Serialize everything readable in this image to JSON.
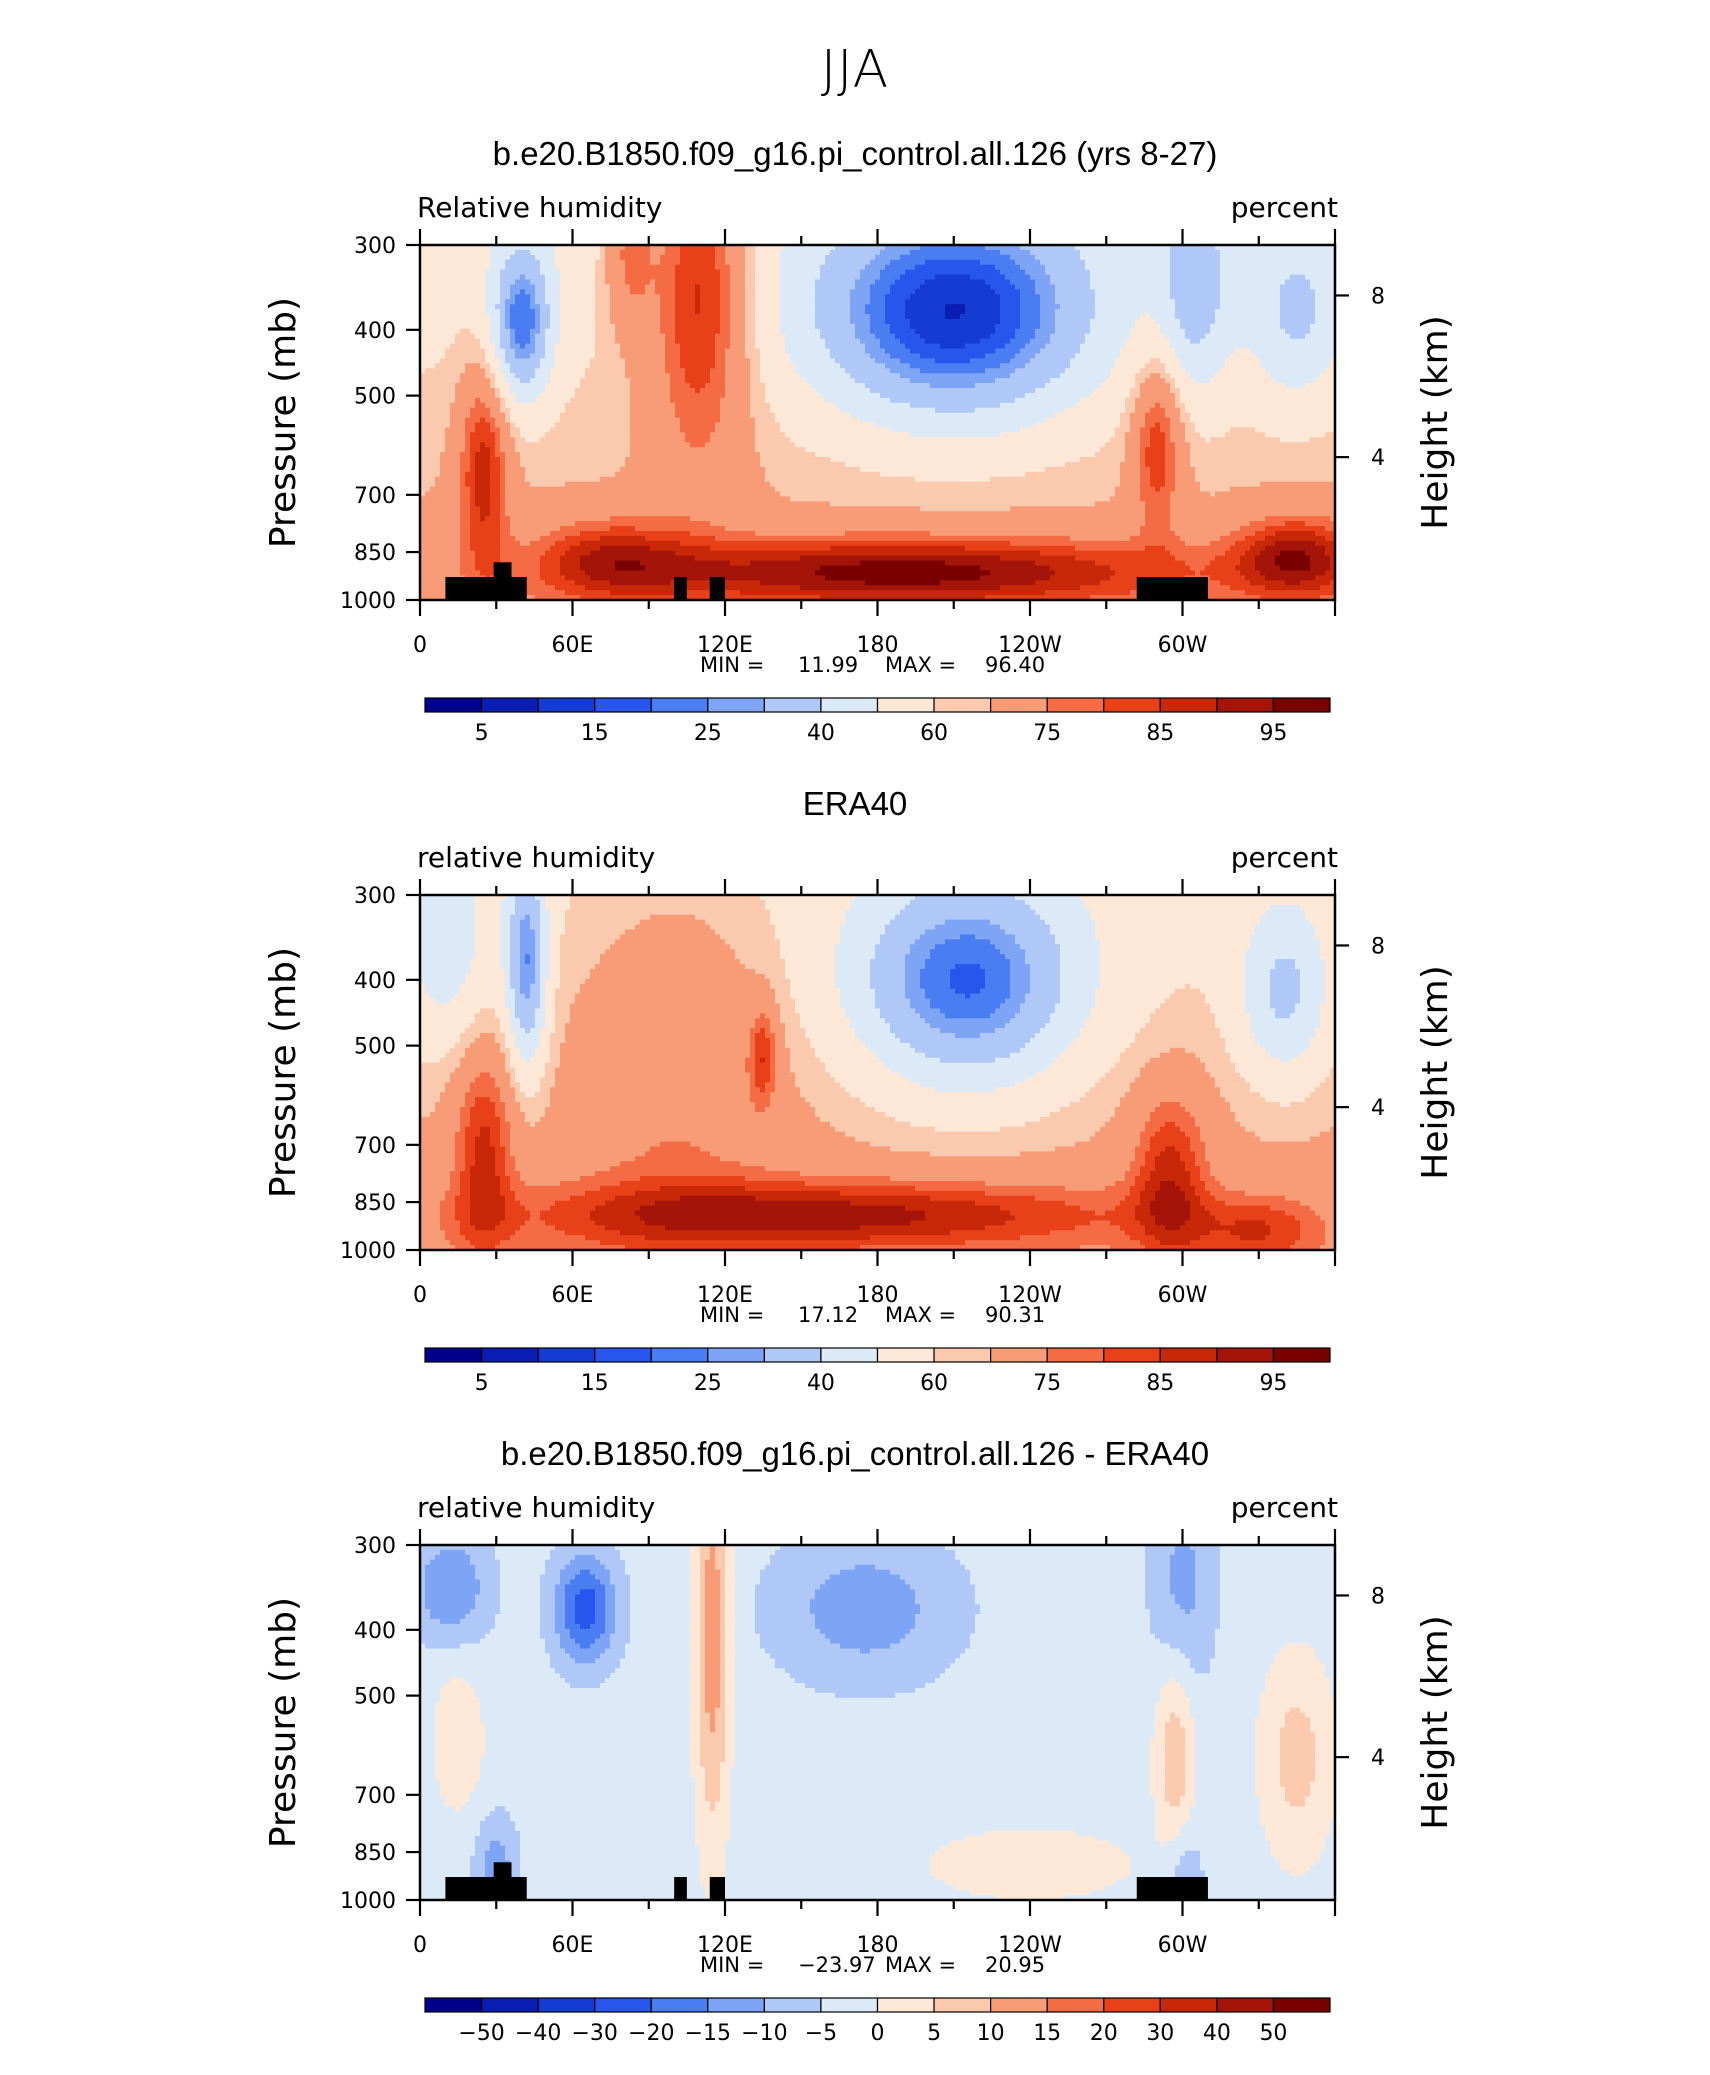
{
  "figure": {
    "title": "JJA"
  },
  "colors": {
    "abs_scale": [
      "#00008c",
      "#0a1eb4",
      "#143cd2",
      "#2856ec",
      "#4a7df2",
      "#7ea4f5",
      "#b0c8f7",
      "#dceaf8",
      "#fde8d8",
      "#fbc9ad",
      "#f89c78",
      "#f46b44",
      "#e84018",
      "#c92808",
      "#a41408",
      "#7a0000"
    ],
    "diff_scale": [
      "#00008c",
      "#0a1eb4",
      "#143cd2",
      "#2856ec",
      "#4a7df2",
      "#7ea4f5",
      "#b0c8f7",
      "#dceaf8",
      "#fde8d8",
      "#fbc9ad",
      "#f89c78",
      "#f46b44",
      "#e84018",
      "#c92808",
      "#a41408",
      "#7a0000"
    ],
    "land": "#000000"
  },
  "chart_data": [
    {
      "type": "heatmap",
      "title": "b.e20.B1850.f09_g16.pi_control.all.126 (yrs 8-27)",
      "left_label": "Relative humidity",
      "right_label": "percent",
      "ylabel": "Pressure (mb)",
      "ylabel_right": "Height (km)",
      "x_ticks": [
        "0",
        "60E",
        "120E",
        "180",
        "120W",
        "60W"
      ],
      "y_ticks": [
        "300",
        "400",
        "500",
        "700",
        "850",
        "1000"
      ],
      "y_ticks_right": [
        "8",
        "4"
      ],
      "stats": {
        "min_label": "MIN =",
        "min": "11.99",
        "max_label": "MAX =",
        "max": "96.40"
      },
      "colorbar_labels": [
        "5",
        "15",
        "25",
        "40",
        "60",
        "75",
        "85",
        "95"
      ],
      "field": "model"
    },
    {
      "type": "heatmap",
      "title": "ERA40",
      "left_label": "relative humidity",
      "right_label": "percent",
      "ylabel": "Pressure (mb)",
      "ylabel_right": "Height (km)",
      "x_ticks": [
        "0",
        "60E",
        "120E",
        "180",
        "120W",
        "60W"
      ],
      "y_ticks": [
        "300",
        "400",
        "500",
        "700",
        "850",
        "1000"
      ],
      "y_ticks_right": [
        "8",
        "4"
      ],
      "stats": {
        "min_label": "MIN =",
        "min": "17.12",
        "max_label": "MAX =",
        "max": "90.31"
      },
      "colorbar_labels": [
        "5",
        "15",
        "25",
        "40",
        "60",
        "75",
        "85",
        "95"
      ],
      "field": "obs"
    },
    {
      "type": "heatmap",
      "title": "b.e20.B1850.f09_g16.pi_control.all.126 - ERA40",
      "left_label": "relative humidity",
      "right_label": "percent",
      "ylabel": "Pressure (mb)",
      "ylabel_right": "Height (km)",
      "x_ticks": [
        "0",
        "60E",
        "120E",
        "180",
        "120W",
        "60W"
      ],
      "y_ticks": [
        "300",
        "400",
        "500",
        "700",
        "850",
        "1000"
      ],
      "y_ticks_right": [
        "8",
        "4"
      ],
      "stats": {
        "min_label": "MIN =",
        "min": "−23.97",
        "max_label": "MAX =",
        "max": "20.95"
      },
      "colorbar_labels": [
        "−50",
        "−40",
        "−30",
        "−20",
        "−15",
        "−10",
        "−5",
        "0",
        "5",
        "10",
        "15",
        "20",
        "30",
        "40",
        "50"
      ],
      "field": "diff"
    }
  ]
}
